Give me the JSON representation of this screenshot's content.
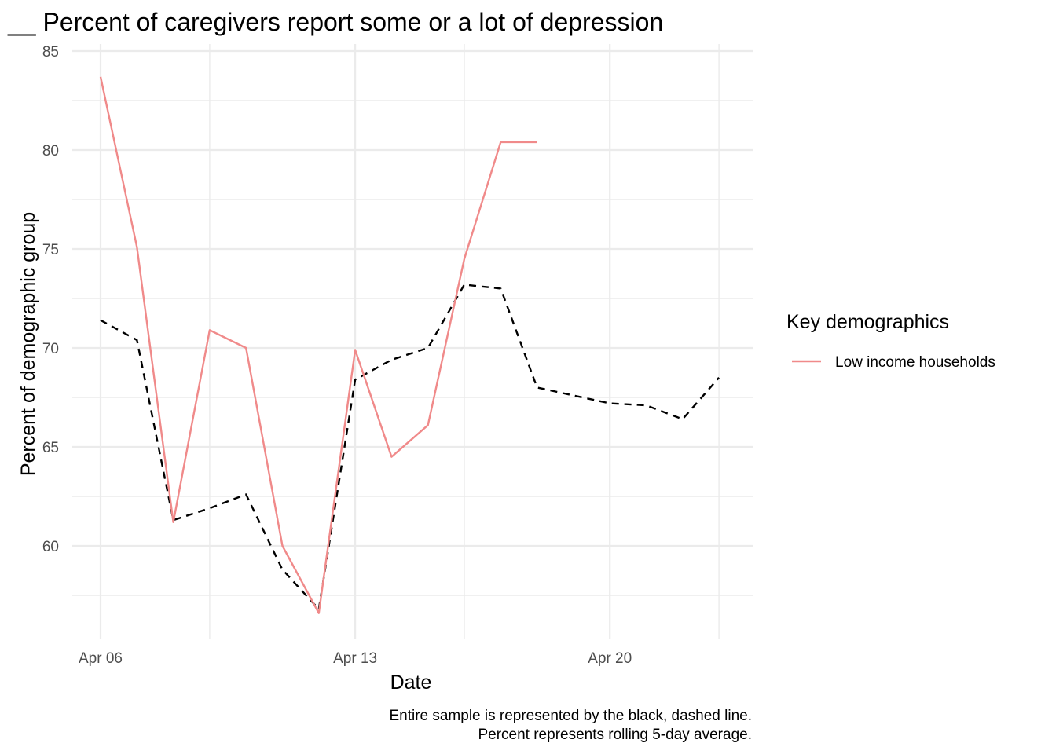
{
  "chart_data": {
    "type": "line",
    "title": "__ Percent of caregivers report some or a lot of depression",
    "xlabel": "Date",
    "ylabel": "Percent of demographic group",
    "x_axis": {
      "type": "date",
      "range": [
        "2020-04-06",
        "2020-04-23"
      ],
      "major_ticks": [
        "2020-04-06",
        "2020-04-13",
        "2020-04-20"
      ],
      "tick_labels": [
        "Apr 06",
        "Apr 13",
        "Apr 20"
      ],
      "minor_ticks": [
        "2020-04-09",
        "2020-04-16",
        "2020-04-23"
      ]
    },
    "y_axis": {
      "range": [
        55.2,
        85
      ],
      "major_ticks": [
        60,
        65,
        70,
        75,
        80,
        85
      ],
      "tick_labels": [
        "60",
        "65",
        "70",
        "75",
        "80",
        "85"
      ],
      "minor_ticks": [
        57.5,
        62.5,
        67.5,
        72.5,
        77.5,
        82.5
      ]
    },
    "grid": true,
    "legend": {
      "title": "Key demographics",
      "position": "right",
      "entries": [
        {
          "label": "Low income households",
          "color": "#f08a8a"
        }
      ]
    },
    "series": [
      {
        "name": "Low income households",
        "color": "#f08a8a",
        "style": "solid",
        "x": [
          "2020-04-06",
          "2020-04-07",
          "2020-04-08",
          "2020-04-09",
          "2020-04-10",
          "2020-04-11",
          "2020-04-12",
          "2020-04-13",
          "2020-04-14",
          "2020-04-15",
          "2020-04-16",
          "2020-04-17",
          "2020-04-18"
        ],
        "y": [
          83.7,
          75.1,
          61.2,
          70.9,
          70.0,
          60.0,
          56.6,
          69.9,
          64.5,
          66.1,
          74.5,
          80.4,
          80.4
        ]
      },
      {
        "color": "#000000",
        "style": "dashed",
        "x": [
          "2020-04-06",
          "2020-04-07",
          "2020-04-08",
          "2020-04-09",
          "2020-04-10",
          "2020-04-11",
          "2020-04-12",
          "2020-04-13",
          "2020-04-14",
          "2020-04-15",
          "2020-04-16",
          "2020-04-17",
          "2020-04-18",
          "2020-04-19",
          "2020-04-20",
          "2020-04-21",
          "2020-04-22",
          "2020-04-23"
        ],
        "y": [
          71.4,
          70.4,
          61.3,
          61.9,
          62.6,
          58.8,
          56.8,
          68.4,
          69.4,
          70.0,
          73.2,
          73.0,
          68.0,
          67.6,
          67.2,
          67.1,
          66.4,
          68.5
        ]
      }
    ],
    "caption": [
      "Entire sample is represented by the black, dashed line.",
      "Percent represents rolling 5-day average."
    ]
  }
}
